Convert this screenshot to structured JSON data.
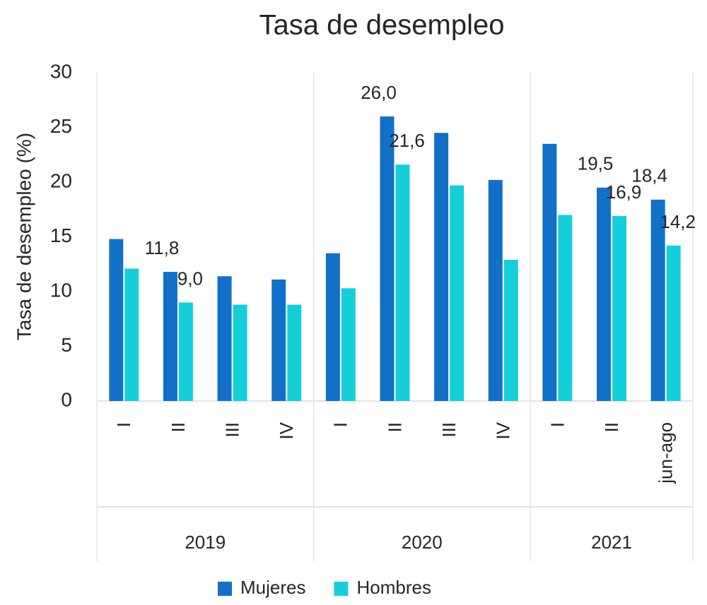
{
  "chart_data": {
    "type": "bar",
    "title": "Tasa de desempleo",
    "y_label": "Tasa de desempleo (%)",
    "groups": [
      {
        "name": "2019",
        "categories": [
          "I",
          "II",
          "III",
          "IV"
        ]
      },
      {
        "name": "2020",
        "categories": [
          "I",
          "II",
          "III",
          "IV"
        ]
      },
      {
        "name": "2021",
        "categories": [
          "I",
          "II",
          "jun-ago"
        ]
      }
    ],
    "series": [
      {
        "name": "Mujeres",
        "color": "#1270c9",
        "values": [
          14.8,
          11.8,
          11.4,
          11.1,
          13.5,
          26.0,
          24.5,
          20.2,
          23.5,
          19.5,
          18.4
        ],
        "value_labels": [
          null,
          "11,8",
          null,
          null,
          null,
          "26,0",
          null,
          null,
          null,
          "19,5",
          "18,4"
        ]
      },
      {
        "name": "Hombres",
        "color": "#14cfd9",
        "values": [
          12.1,
          9.0,
          8.8,
          8.8,
          10.3,
          21.6,
          19.7,
          12.9,
          17.0,
          16.9,
          14.2
        ],
        "value_labels": [
          null,
          "9,0",
          null,
          null,
          null,
          "21,6",
          null,
          null,
          null,
          "16,9",
          "14,2"
        ]
      }
    ],
    "ylim": [
      0,
      30
    ],
    "yticks": [
      0,
      5,
      10,
      15,
      20,
      25,
      30
    ],
    "grid": false,
    "legend": "bottom"
  }
}
